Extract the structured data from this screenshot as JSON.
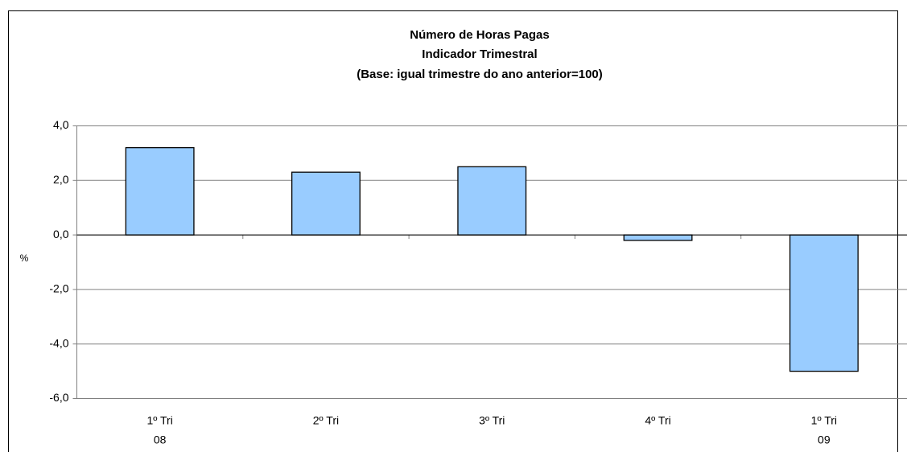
{
  "chart_data": {
    "type": "bar",
    "title": [
      "Número de Horas Pagas",
      "Indicador Trimestral",
      "(Base: igual trimestre do ano anterior=100)"
    ],
    "y_label": "%",
    "categories": [
      [
        "1º Tri",
        "08"
      ],
      [
        "2º Tri"
      ],
      [
        "3º Tri"
      ],
      [
        "4º Tri"
      ],
      [
        "1º Tri",
        "09"
      ]
    ],
    "values": [
      3.2,
      2.3,
      2.5,
      -0.2,
      -5.0
    ],
    "color": "#99ccff",
    "ylim": [
      -6,
      4
    ],
    "yticks": [
      {
        "value": -6,
        "label": "-6,0"
      },
      {
        "value": -4,
        "label": "-4,0"
      },
      {
        "value": -2,
        "label": "-2,0"
      },
      {
        "value": 0,
        "label": "0,0"
      },
      {
        "value": 2,
        "label": "2,0"
      },
      {
        "value": 4,
        "label": "4,0"
      }
    ],
    "grid": true
  }
}
